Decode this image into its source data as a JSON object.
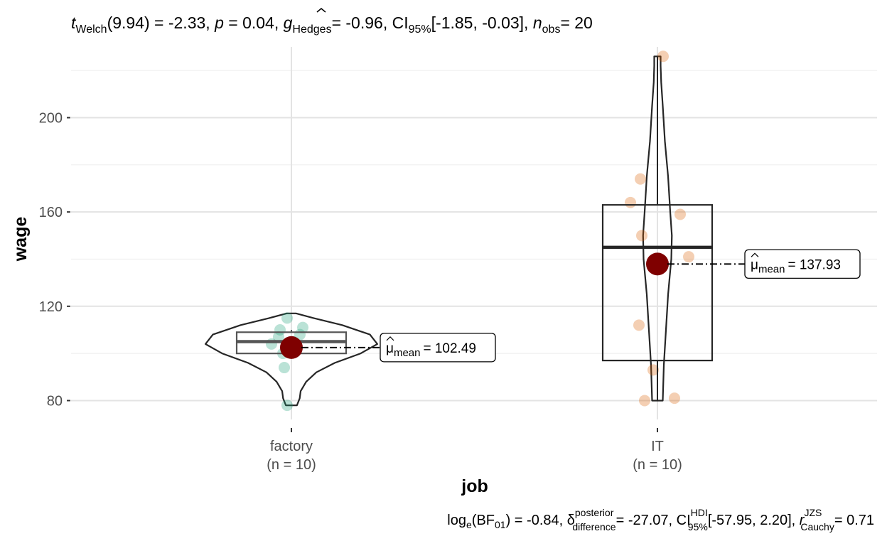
{
  "chart_data": {
    "type": "violin-box",
    "title": "",
    "xlabel": "job",
    "ylabel": "wage",
    "ylim": [
      72,
      230
    ],
    "yticks": [
      80,
      120,
      160,
      200
    ],
    "grid": true,
    "subtitle": {
      "t": "t",
      "welch": "Welch",
      "df_part": "(9.94) = -2.33,",
      "p": "p",
      "p_part": "= 0.04,",
      "g": "g",
      "hedges": "Hedges",
      "g_part": "= -0.96, CI",
      "ci_sub": "95%",
      "ci_part": "[-1.85, -0.03],",
      "n": "n",
      "obs": "obs",
      "n_part": "= 20"
    },
    "caption": {
      "log": "log",
      "e": "e",
      "bf_open": "(BF",
      "bf_sub": "01",
      "bf_part": ") = -0.84,",
      "delta": "δ",
      "posterior": "posterior",
      "difference": "difference",
      "delta_part": "= -27.07, CI",
      "hdi": "HDI",
      "ci_sub": "95%",
      "ci_part": "[-57.95, 2.20],",
      "r": "r",
      "jzs": "JZS",
      "cauchy": "Cauchy",
      "r_part": "= 0.71"
    },
    "mean_label": {
      "mu": "μ",
      "sub": "mean"
    },
    "groups": [
      {
        "category": "factory",
        "n_label": "(n = 10)",
        "color": "#1b9e77",
        "points": [
          115,
          111,
          110,
          108,
          107,
          104,
          100,
          94,
          78,
          105
        ],
        "box": {
          "q1": 100,
          "median": 105,
          "q3": 109,
          "min": 100,
          "max": 110
        },
        "mean": 102.49,
        "mean_text": "= 102.49",
        "violin": [
          [
            78,
            0.06
          ],
          [
            81,
            0.09
          ],
          [
            84,
            0.1
          ],
          [
            88,
            0.16
          ],
          [
            92,
            0.27
          ],
          [
            96,
            0.47
          ],
          [
            100,
            0.75
          ],
          [
            104,
            0.93
          ],
          [
            108,
            0.85
          ],
          [
            112,
            0.55
          ],
          [
            115,
            0.24
          ],
          [
            117,
            0.05
          ]
        ]
      },
      {
        "category": "IT",
        "n_label": "(n = 10)",
        "color": "#d95f02",
        "points": [
          226,
          174,
          164,
          159,
          150,
          141,
          112,
          93,
          81,
          80
        ],
        "box": {
          "q1": 97,
          "median": 145,
          "q3": 163,
          "min": 80,
          "max": 226
        },
        "mean": 137.93,
        "mean_text": "= 137.93",
        "violin": [
          [
            80,
            0.05
          ],
          [
            95,
            0.06
          ],
          [
            110,
            0.08
          ],
          [
            125,
            0.1
          ],
          [
            140,
            0.13
          ],
          [
            150,
            0.135
          ],
          [
            160,
            0.12
          ],
          [
            175,
            0.1
          ],
          [
            190,
            0.07
          ],
          [
            205,
            0.05
          ],
          [
            215,
            0.035
          ],
          [
            222,
            0.03
          ],
          [
            226,
            0.03
          ]
        ]
      }
    ]
  }
}
